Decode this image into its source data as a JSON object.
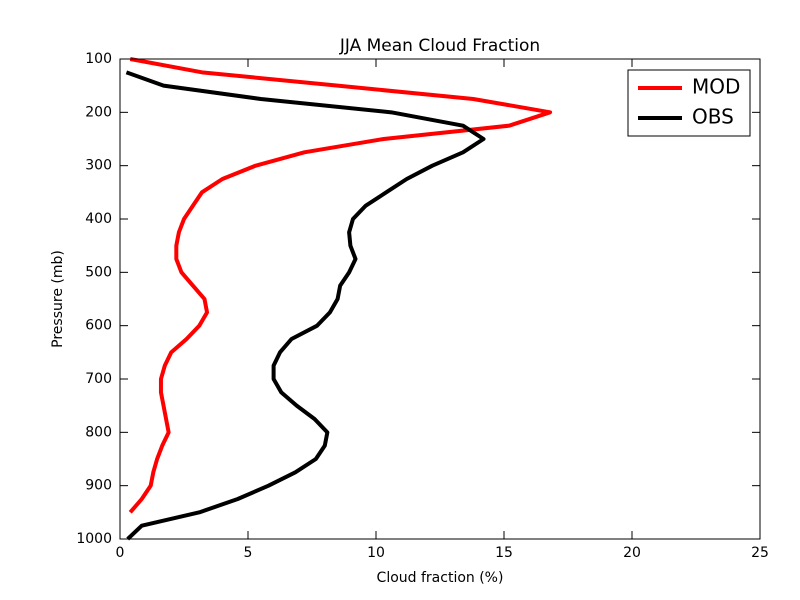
{
  "chart_data": {
    "type": "line",
    "title": "JJA Mean Cloud Fraction",
    "xlabel": "Cloud fraction (%)",
    "ylabel": "Pressure (mb)",
    "y": [
      100,
      125,
      150,
      175,
      200,
      225,
      250,
      275,
      300,
      325,
      350,
      375,
      400,
      425,
      450,
      475,
      500,
      525,
      550,
      575,
      600,
      625,
      650,
      675,
      700,
      725,
      750,
      775,
      800,
      825,
      850,
      875,
      900,
      925,
      950,
      975,
      1000
    ],
    "series": [
      {
        "name": "MOD",
        "color": "#ff0000",
        "values": [
          0.4,
          3.2,
          8.5,
          13.8,
          16.8,
          15.2,
          10.3,
          7.2,
          5.3,
          4.0,
          3.2,
          2.85,
          2.5,
          2.3,
          2.2,
          2.2,
          2.4,
          2.85,
          3.3,
          3.4,
          3.1,
          2.6,
          2.0,
          1.75,
          1.6,
          1.6,
          1.7,
          1.8,
          1.9,
          1.65,
          1.45,
          1.3,
          1.2,
          0.85,
          0.4,
          null,
          null
        ]
      },
      {
        "name": "OBS",
        "color": "#000000",
        "values": [
          null,
          0.25,
          1.7,
          5.5,
          10.6,
          13.4,
          14.2,
          13.4,
          12.2,
          11.2,
          10.4,
          9.6,
          9.1,
          8.95,
          9.0,
          9.2,
          8.95,
          8.6,
          8.5,
          8.2,
          7.7,
          6.7,
          6.25,
          6.0,
          6.0,
          6.3,
          6.9,
          7.6,
          8.1,
          8.0,
          7.65,
          6.85,
          5.8,
          4.6,
          3.1,
          0.85,
          0.3
        ]
      }
    ],
    "xlim": [
      0,
      25
    ],
    "xticks": [
      0,
      5,
      10,
      15,
      20,
      25
    ],
    "ylim": [
      1000,
      100
    ],
    "yticks": [
      100,
      200,
      300,
      400,
      500,
      600,
      700,
      800,
      900,
      1000
    ],
    "legend": "upper right"
  }
}
